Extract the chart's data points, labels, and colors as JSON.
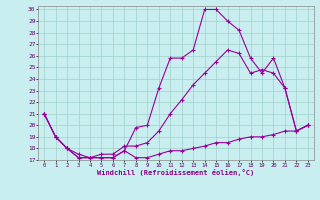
{
  "xlabel": "Windchill (Refroidissement éolien,°C)",
  "bg_color": "#c8eef0",
  "grid_color": "#a0d0c8",
  "line_color": "#990099",
  "xlim_min": -0.5,
  "xlim_max": 23.5,
  "ylim_min": 17,
  "ylim_max": 30.3,
  "yticks": [
    17,
    18,
    19,
    20,
    21,
    22,
    23,
    24,
    25,
    26,
    27,
    28,
    29,
    30
  ],
  "xticks": [
    0,
    1,
    2,
    3,
    4,
    5,
    6,
    7,
    8,
    9,
    10,
    11,
    12,
    13,
    14,
    15,
    16,
    17,
    18,
    19,
    20,
    21,
    22,
    23
  ],
  "line1_x": [
    0,
    1,
    2,
    3,
    4,
    5,
    6,
    7,
    8,
    9,
    10,
    11,
    12,
    13,
    14,
    15,
    16,
    17,
    18,
    19,
    20,
    21,
    22,
    23
  ],
  "line1_y": [
    21,
    19,
    18,
    17.2,
    17.2,
    17.2,
    17.2,
    17.8,
    17.2,
    17.2,
    17.5,
    17.8,
    17.8,
    18.0,
    18.2,
    18.5,
    18.5,
    18.8,
    19.0,
    19.0,
    19.2,
    19.5,
    19.5,
    20.0
  ],
  "line2_x": [
    0,
    1,
    2,
    3,
    4,
    5,
    6,
    7,
    8,
    9,
    10,
    11,
    12,
    13,
    14,
    15,
    16,
    17,
    18,
    19,
    20,
    21,
    22,
    23
  ],
  "line2_y": [
    21,
    19,
    18,
    17.2,
    17.2,
    17.2,
    17.2,
    17.8,
    19.8,
    20.0,
    23.2,
    25.8,
    25.8,
    26.5,
    30.0,
    30.0,
    29.0,
    28.2,
    25.8,
    24.5,
    25.8,
    23.2,
    19.5,
    20.0
  ],
  "line3_x": [
    0,
    1,
    2,
    3,
    4,
    5,
    6,
    7,
    8,
    9,
    10,
    11,
    12,
    13,
    14,
    15,
    16,
    17,
    18,
    19,
    20,
    21,
    22,
    23
  ],
  "line3_y": [
    21,
    19,
    18,
    17.5,
    17.2,
    17.5,
    17.5,
    18.2,
    18.2,
    18.5,
    19.5,
    21.0,
    22.2,
    23.5,
    24.5,
    25.5,
    26.5,
    26.2,
    24.5,
    24.8,
    24.5,
    23.2,
    19.5,
    20.0
  ]
}
